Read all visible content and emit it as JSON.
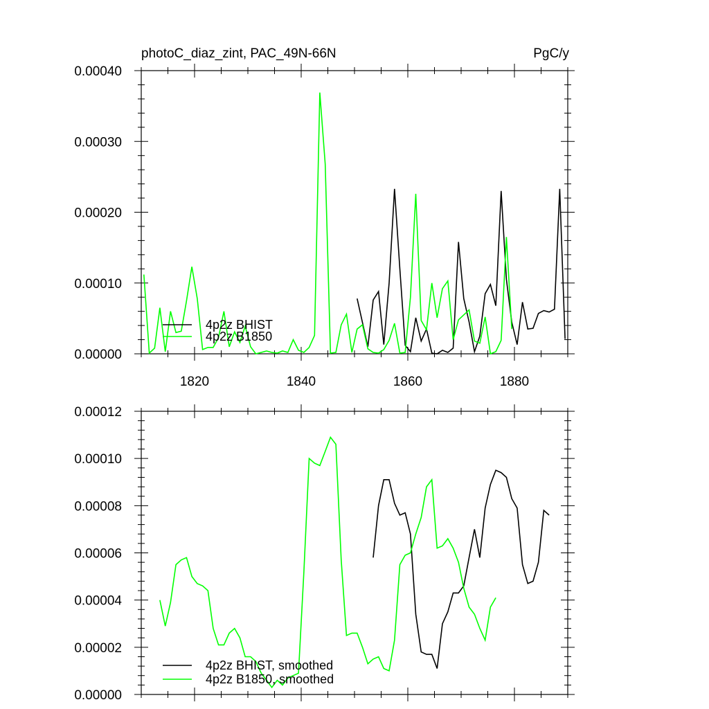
{
  "figure": {
    "title_left": "photoC_diaz_zint, PAC_49N-66N",
    "title_right": "PgC/y"
  },
  "colors": {
    "bhist": "#000000",
    "b1850": "#00ff00"
  },
  "chart_data": [
    {
      "type": "line",
      "title": "photoC_diaz_zint, PAC_49N-66N",
      "units": "PgC/y",
      "xlim": [
        1810,
        1890
      ],
      "ylim": [
        0,
        0.0004
      ],
      "x_ticks": [
        "1820",
        "1840",
        "1860",
        "1880"
      ],
      "y_ticks": [
        "0.00000",
        "0.00010",
        "0.00020",
        "0.00030",
        "0.00040"
      ],
      "legend_position": "lower-left",
      "series": [
        {
          "name": "4p2z BHIST",
          "color_key": "bhist",
          "points": [
            [
              1850.5,
              7.8e-05
            ],
            [
              1852.5,
              1e-05
            ],
            [
              1853.5,
              7.6e-05
            ],
            [
              1854.5,
              8.8e-05
            ],
            [
              1855.5,
              1.3e-05
            ],
            [
              1856.5,
              0.0001
            ],
            [
              1857.5,
              0.000233
            ],
            [
              1858.5,
              0.00012
            ],
            [
              1859.5,
              1.2e-05
            ],
            [
              1860.5,
              3e-06
            ],
            [
              1861.5,
              5.1e-05
            ],
            [
              1862.5,
              1.8e-05
            ],
            [
              1863.5,
              3.5e-05
            ],
            [
              1864.5,
              1e-06
            ],
            [
              1865.5,
              0.0
            ],
            [
              1866.5,
              5e-06
            ],
            [
              1867.5,
              2e-06
            ],
            [
              1868.5,
              8e-06
            ],
            [
              1869.5,
              0.000158
            ],
            [
              1870.5,
              7.8e-05
            ],
            [
              1871.5,
              4.5e-05
            ],
            [
              1872.5,
              3e-06
            ],
            [
              1873.5,
              2.5e-05
            ],
            [
              1874.5,
              8.5e-05
            ],
            [
              1875.5,
              9.8e-05
            ],
            [
              1876.5,
              6.8e-05
            ],
            [
              1877.5,
              0.00023
            ],
            [
              1878.5,
              0.000105
            ],
            [
              1879.5,
              4.5e-05
            ],
            [
              1880.5,
              1.3e-05
            ],
            [
              1881.5,
              7.3e-05
            ],
            [
              1882.5,
              3.5e-05
            ],
            [
              1883.5,
              3.6e-05
            ],
            [
              1884.5,
              5.7e-05
            ],
            [
              1885.5,
              6.1e-05
            ],
            [
              1886.5,
              5.9e-05
            ],
            [
              1887.5,
              6.3e-05
            ],
            [
              1888.5,
              0.000233
            ],
            [
              1889.5,
              2.1e-05
            ]
          ]
        },
        {
          "name": "4p2z B1850",
          "color_key": "b1850",
          "points": [
            [
              1810.5,
              0.000112
            ],
            [
              1811.5,
              1e-06
            ],
            [
              1812.5,
              8e-06
            ],
            [
              1813.5,
              6.5e-05
            ],
            [
              1814.5,
              3e-06
            ],
            [
              1815.5,
              6e-05
            ],
            [
              1816.5,
              3e-05
            ],
            [
              1817.5,
              3.2e-05
            ],
            [
              1818.5,
              7.5e-05
            ],
            [
              1819.5,
              0.000123
            ],
            [
              1820.5,
              7.8e-05
            ],
            [
              1821.5,
              6e-06
            ],
            [
              1822.5,
              9e-06
            ],
            [
              1823.5,
              9e-06
            ],
            [
              1824.5,
              2.3e-05
            ],
            [
              1825.5,
              6e-05
            ],
            [
              1826.5,
              1e-05
            ],
            [
              1827.5,
              3.1e-05
            ],
            [
              1828.5,
              1.6e-05
            ],
            [
              1829.5,
              3.9e-05
            ],
            [
              1830.5,
              1e-05
            ],
            [
              1831.5,
              0.0
            ],
            [
              1832.5,
              2e-06
            ],
            [
              1833.5,
              4e-06
            ],
            [
              1834.5,
              2e-06
            ],
            [
              1835.5,
              1e-06
            ],
            [
              1836.5,
              4e-06
            ],
            [
              1837.5,
              2e-06
            ],
            [
              1838.5,
              2e-05
            ],
            [
              1839.5,
              5e-06
            ],
            [
              1840.5,
              2e-06
            ],
            [
              1841.5,
              9e-06
            ],
            [
              1842.5,
              2.6e-05
            ],
            [
              1843.5,
              0.000369
            ],
            [
              1844.5,
              0.000268
            ],
            [
              1845.5,
              1e-06
            ],
            [
              1846.5,
              2e-06
            ],
            [
              1847.5,
              4.1e-05
            ],
            [
              1848.5,
              5.6e-05
            ],
            [
              1849.5,
              2e-06
            ],
            [
              1850.5,
              3.5e-05
            ],
            [
              1851.5,
              4.1e-05
            ],
            [
              1852.5,
              7e-06
            ],
            [
              1853.5,
              2e-06
            ],
            [
              1854.5,
              1e-06
            ],
            [
              1855.5,
              6e-06
            ],
            [
              1856.5,
              1.9e-05
            ],
            [
              1857.5,
              4.3e-05
            ],
            [
              1858.5,
              1e-06
            ],
            [
              1859.5,
              2e-06
            ],
            [
              1860.5,
              8e-05
            ],
            [
              1861.5,
              0.000226
            ],
            [
              1862.5,
              4.7e-05
            ],
            [
              1863.5,
              3.4e-05
            ],
            [
              1864.5,
              0.0001
            ],
            [
              1865.5,
              5.1e-05
            ],
            [
              1866.5,
              9.2e-05
            ],
            [
              1867.5,
              0.000103
            ],
            [
              1868.5,
              2e-05
            ],
            [
              1869.5,
              4.8e-05
            ],
            [
              1870.5,
              5.5e-05
            ],
            [
              1871.5,
              6.2e-05
            ],
            [
              1872.5,
              1.8e-05
            ],
            [
              1873.5,
              1.5e-05
            ],
            [
              1874.5,
              5.2e-05
            ],
            [
              1875.5,
              0.0
            ],
            [
              1876.5,
              3e-06
            ],
            [
              1877.5,
              1.9e-05
            ],
            [
              1878.5,
              0.000165
            ],
            [
              1879.5,
              3.5e-05
            ]
          ]
        }
      ]
    },
    {
      "type": "line",
      "xlim": [
        1810,
        1890
      ],
      "ylim": [
        0,
        0.00012
      ],
      "y_ticks": [
        "0.00000",
        "0.00002",
        "0.00004",
        "0.00006",
        "0.00008",
        "0.00010",
        "0.00012"
      ],
      "legend_position": "lower-left",
      "series": [
        {
          "name": "4p2z BHIST, smoothed",
          "color_key": "bhist",
          "points": [
            [
              1853.5,
              5.8e-05
            ],
            [
              1854.5,
              8e-05
            ],
            [
              1855.5,
              9.1e-05
            ],
            [
              1856.5,
              9.1e-05
            ],
            [
              1857.5,
              8.1e-05
            ],
            [
              1858.5,
              7.6e-05
            ],
            [
              1859.5,
              7.7e-05
            ],
            [
              1860.5,
              6.8e-05
            ],
            [
              1861.5,
              3.4e-05
            ],
            [
              1862.5,
              1.8e-05
            ],
            [
              1863.5,
              1.7e-05
            ],
            [
              1864.5,
              1.7e-05
            ],
            [
              1865.5,
              1.1e-05
            ],
            [
              1866.5,
              3e-05
            ],
            [
              1867.5,
              3.5e-05
            ],
            [
              1868.5,
              4.3e-05
            ],
            [
              1869.5,
              4.3e-05
            ],
            [
              1870.5,
              4.6e-05
            ],
            [
              1871.5,
              5.8e-05
            ],
            [
              1872.5,
              7e-05
            ],
            [
              1873.5,
              5.8e-05
            ],
            [
              1874.5,
              7.9e-05
            ],
            [
              1875.5,
              8.9e-05
            ],
            [
              1876.5,
              9.5e-05
            ],
            [
              1877.5,
              9.4e-05
            ],
            [
              1878.5,
              9.2e-05
            ],
            [
              1879.5,
              8.3e-05
            ],
            [
              1880.5,
              7.9e-05
            ],
            [
              1881.5,
              5.5e-05
            ],
            [
              1882.5,
              4.7e-05
            ],
            [
              1883.5,
              4.8e-05
            ],
            [
              1884.5,
              5.6e-05
            ],
            [
              1885.5,
              7.8e-05
            ],
            [
              1886.5,
              7.6e-05
            ]
          ]
        },
        {
          "name": "4p2z B1850, smoothed",
          "color_key": "b1850",
          "points": [
            [
              1813.5,
              4e-05
            ],
            [
              1814.5,
              2.9e-05
            ],
            [
              1815.5,
              3.9e-05
            ],
            [
              1816.5,
              5.5e-05
            ],
            [
              1817.5,
              5.7e-05
            ],
            [
              1818.5,
              5.8e-05
            ],
            [
              1819.5,
              5e-05
            ],
            [
              1820.5,
              4.7e-05
            ],
            [
              1821.5,
              4.6e-05
            ],
            [
              1822.5,
              4.4e-05
            ],
            [
              1823.5,
              2.8e-05
            ],
            [
              1824.5,
              2.1e-05
            ],
            [
              1825.5,
              2.1e-05
            ],
            [
              1826.5,
              2.6e-05
            ],
            [
              1827.5,
              2.8e-05
            ],
            [
              1828.5,
              2.4e-05
            ],
            [
              1829.5,
              1.6e-05
            ],
            [
              1830.5,
              1.6e-05
            ],
            [
              1831.5,
              1.4e-05
            ],
            [
              1832.5,
              9e-06
            ],
            [
              1833.5,
              6e-06
            ],
            [
              1834.5,
              3e-06
            ],
            [
              1835.5,
              6e-06
            ],
            [
              1836.5,
              4e-06
            ],
            [
              1837.5,
              7e-06
            ],
            [
              1838.5,
              8e-06
            ],
            [
              1839.5,
              9e-06
            ],
            [
              1840.5,
              5.2e-05
            ],
            [
              1841.5,
              0.0001
            ],
            [
              1842.5,
              9.8e-05
            ],
            [
              1843.5,
              9.7e-05
            ],
            [
              1844.5,
              0.000103
            ],
            [
              1845.5,
              0.000109
            ],
            [
              1846.5,
              0.000106
            ],
            [
              1847.5,
              5.7e-05
            ],
            [
              1848.5,
              2.5e-05
            ],
            [
              1849.5,
              2.6e-05
            ],
            [
              1850.5,
              2.6e-05
            ],
            [
              1851.5,
              2e-05
            ],
            [
              1852.5,
              1.3e-05
            ],
            [
              1853.5,
              1.5e-05
            ],
            [
              1854.5,
              1.6e-05
            ],
            [
              1855.5,
              1.1e-05
            ],
            [
              1856.5,
              1e-05
            ],
            [
              1857.5,
              2.3e-05
            ],
            [
              1858.5,
              5.5e-05
            ],
            [
              1859.5,
              5.9e-05
            ],
            [
              1860.5,
              6e-05
            ],
            [
              1861.5,
              6.8e-05
            ],
            [
              1862.5,
              7.5e-05
            ],
            [
              1863.5,
              8.8e-05
            ],
            [
              1864.5,
              9.1e-05
            ],
            [
              1865.5,
              6.2e-05
            ],
            [
              1866.5,
              6.3e-05
            ],
            [
              1867.5,
              6.6e-05
            ],
            [
              1868.5,
              6.2e-05
            ],
            [
              1869.5,
              5.6e-05
            ],
            [
              1870.5,
              4.5e-05
            ],
            [
              1871.5,
              3.7e-05
            ],
            [
              1872.5,
              3.4e-05
            ],
            [
              1873.5,
              2.8e-05
            ],
            [
              1874.5,
              2.3e-05
            ],
            [
              1875.5,
              3.7e-05
            ],
            [
              1876.5,
              4.1e-05
            ]
          ]
        }
      ]
    }
  ]
}
